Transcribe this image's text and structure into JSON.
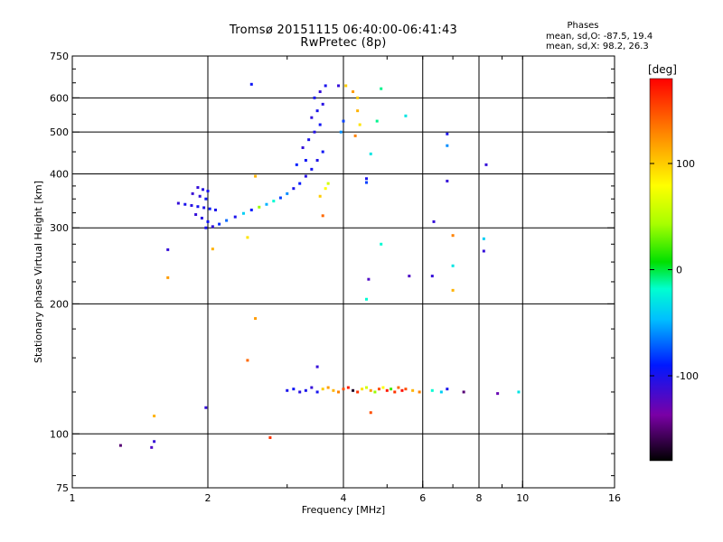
{
  "title": {
    "line1": "Tromsø 20151115 06:40:00-06:41:43",
    "line2": "RwPretec (8p)"
  },
  "stats": {
    "heading": "Phases",
    "line1": "mean, sd,O: -87.5, 19.4",
    "line2": "mean, sd,X:  98.2, 26.3"
  },
  "colorbar": {
    "unit": "[deg]",
    "ticks": [
      {
        "value": 100,
        "label": "100"
      },
      {
        "value": 0,
        "label": "0"
      },
      {
        "value": -100,
        "label": "-100"
      }
    ],
    "range": [
      -180,
      180
    ]
  },
  "chart_data": {
    "type": "scatter",
    "title": "Tromsø 20151115 06:40:00-06:41:43",
    "subtitle": "RwPretec (8p)",
    "xlabel": "Frequency [MHz]",
    "ylabel": "Stationary phase Virtual Height [km]",
    "xscale": "log",
    "yscale": "log",
    "xlim": [
      1,
      16
    ],
    "ylim": [
      75,
      750
    ],
    "grid": true,
    "x_ticks": [
      {
        "value": 1,
        "label": "1"
      },
      {
        "value": 2,
        "label": "2"
      },
      {
        "value": 4,
        "label": "4"
      },
      {
        "value": 6,
        "label": "6"
      },
      {
        "value": 8,
        "label": "8"
      },
      {
        "value": 10,
        "label": "10"
      },
      {
        "value": 16,
        "label": "16"
      }
    ],
    "y_ticks": [
      {
        "value": 75,
        "label": "75"
      },
      {
        "value": 100,
        "label": "100"
      },
      {
        "value": 200,
        "label": "200"
      },
      {
        "value": 300,
        "label": "300"
      },
      {
        "value": 400,
        "label": "400"
      },
      {
        "value": 500,
        "label": "500"
      },
      {
        "value": 600,
        "label": "600"
      },
      {
        "value": 750,
        "label": "750"
      }
    ],
    "x_gridlines": [
      2,
      4,
      6,
      8,
      10
    ],
    "y_gridlines": [
      100,
      200,
      300,
      400,
      500,
      600
    ],
    "color_variable": "phase [deg]",
    "series": [
      {
        "values": [
          {
            "x": 1.9,
            "y": 372,
            "phase": -110
          },
          {
            "x": 1.95,
            "y": 368,
            "phase": -105
          },
          {
            "x": 2.0,
            "y": 365,
            "phase": -100
          },
          {
            "x": 1.85,
            "y": 360,
            "phase": -112
          },
          {
            "x": 1.92,
            "y": 355,
            "phase": -108
          },
          {
            "x": 1.98,
            "y": 350,
            "phase": -95
          },
          {
            "x": 1.72,
            "y": 342,
            "phase": -110
          },
          {
            "x": 1.78,
            "y": 340,
            "phase": -100
          },
          {
            "x": 1.84,
            "y": 338,
            "phase": -105
          },
          {
            "x": 1.9,
            "y": 336,
            "phase": -98
          },
          {
            "x": 1.96,
            "y": 334,
            "phase": -102
          },
          {
            "x": 2.02,
            "y": 332,
            "phase": -92
          },
          {
            "x": 2.08,
            "y": 330,
            "phase": -100
          },
          {
            "x": 1.88,
            "y": 322,
            "phase": -110
          },
          {
            "x": 1.94,
            "y": 316,
            "phase": -104
          },
          {
            "x": 2.0,
            "y": 310,
            "phase": -95
          },
          {
            "x": 1.98,
            "y": 300,
            "phase": -100
          },
          {
            "x": 2.05,
            "y": 302,
            "phase": -108
          },
          {
            "x": 2.12,
            "y": 306,
            "phase": -85
          },
          {
            "x": 2.2,
            "y": 312,
            "phase": -70
          },
          {
            "x": 2.3,
            "y": 318,
            "phase": -100
          },
          {
            "x": 2.4,
            "y": 324,
            "phase": -40
          },
          {
            "x": 2.5,
            "y": 330,
            "phase": -90
          },
          {
            "x": 2.6,
            "y": 335,
            "phase": 40
          },
          {
            "x": 2.7,
            "y": 340,
            "phase": -50
          },
          {
            "x": 2.8,
            "y": 346,
            "phase": -20
          },
          {
            "x": 2.9,
            "y": 352,
            "phase": -80
          },
          {
            "x": 3.0,
            "y": 360,
            "phase": -60
          },
          {
            "x": 3.1,
            "y": 370,
            "phase": -100
          },
          {
            "x": 3.2,
            "y": 380,
            "phase": -90
          },
          {
            "x": 3.3,
            "y": 395,
            "phase": -105
          },
          {
            "x": 3.4,
            "y": 410,
            "phase": -98
          },
          {
            "x": 3.5,
            "y": 430,
            "phase": -102
          },
          {
            "x": 3.6,
            "y": 450,
            "phase": -95
          },
          {
            "x": 3.25,
            "y": 460,
            "phase": -110
          },
          {
            "x": 3.35,
            "y": 480,
            "phase": -100
          },
          {
            "x": 3.45,
            "y": 500,
            "phase": -104
          },
          {
            "x": 3.55,
            "y": 520,
            "phase": -96
          },
          {
            "x": 3.4,
            "y": 540,
            "phase": -108
          },
          {
            "x": 3.5,
            "y": 560,
            "phase": -100
          },
          {
            "x": 3.6,
            "y": 580,
            "phase": -105
          },
          {
            "x": 3.45,
            "y": 600,
            "phase": -98
          },
          {
            "x": 3.55,
            "y": 620,
            "phase": -110
          },
          {
            "x": 3.65,
            "y": 640,
            "phase": -100
          },
          {
            "x": 3.3,
            "y": 430,
            "phase": -95
          },
          {
            "x": 3.15,
            "y": 420,
            "phase": -88
          },
          {
            "x": 3.7,
            "y": 380,
            "phase": 60
          },
          {
            "x": 3.65,
            "y": 370,
            "phase": 80
          },
          {
            "x": 3.55,
            "y": 355,
            "phase": 100
          },
          {
            "x": 3.6,
            "y": 320,
            "phase": 140
          },
          {
            "x": 2.55,
            "y": 395,
            "phase": 110
          },
          {
            "x": 2.45,
            "y": 285,
            "phase": 90
          },
          {
            "x": 2.05,
            "y": 268,
            "phase": 110
          },
          {
            "x": 1.63,
            "y": 267,
            "phase": -110
          },
          {
            "x": 1.63,
            "y": 230,
            "phase": 120
          },
          {
            "x": 2.5,
            "y": 645,
            "phase": -95
          },
          {
            "x": 3.9,
            "y": 640,
            "phase": -110
          },
          {
            "x": 4.2,
            "y": 620,
            "phase": 120
          },
          {
            "x": 4.3,
            "y": 600,
            "phase": 100
          },
          {
            "x": 4.3,
            "y": 560,
            "phase": 110
          },
          {
            "x": 4.35,
            "y": 520,
            "phase": 90
          },
          {
            "x": 4.25,
            "y": 490,
            "phase": 130
          },
          {
            "x": 4.0,
            "y": 530,
            "phase": -80
          },
          {
            "x": 3.95,
            "y": 500,
            "phase": -60
          },
          {
            "x": 4.05,
            "y": 640,
            "phase": 100
          },
          {
            "x": 4.75,
            "y": 530,
            "phase": -10
          },
          {
            "x": 4.85,
            "y": 630,
            "phase": -10
          },
          {
            "x": 4.6,
            "y": 445,
            "phase": -30
          },
          {
            "x": 4.5,
            "y": 390,
            "phase": -100
          },
          {
            "x": 4.5,
            "y": 382,
            "phase": -80
          },
          {
            "x": 4.85,
            "y": 275,
            "phase": -20
          },
          {
            "x": 4.55,
            "y": 228,
            "phase": -120
          },
          {
            "x": 4.5,
            "y": 205,
            "phase": -20
          },
          {
            "x": 5.5,
            "y": 545,
            "phase": -30
          },
          {
            "x": 5.6,
            "y": 232,
            "phase": -120
          },
          {
            "x": 6.35,
            "y": 310,
            "phase": -110
          },
          {
            "x": 6.3,
            "y": 232,
            "phase": -110
          },
          {
            "x": 6.8,
            "y": 495,
            "phase": -100
          },
          {
            "x": 6.8,
            "y": 465,
            "phase": -60
          },
          {
            "x": 6.8,
            "y": 385,
            "phase": -110
          },
          {
            "x": 7.0,
            "y": 288,
            "phase": 130
          },
          {
            "x": 7.0,
            "y": 245,
            "phase": -30
          },
          {
            "x": 7.0,
            "y": 215,
            "phase": 110
          },
          {
            "x": 8.3,
            "y": 420,
            "phase": -110
          },
          {
            "x": 8.2,
            "y": 283,
            "phase": -40
          },
          {
            "x": 8.2,
            "y": 265,
            "phase": -110
          },
          {
            "x": 2.55,
            "y": 185,
            "phase": 120
          },
          {
            "x": 2.45,
            "y": 148,
            "phase": 140
          },
          {
            "x": 3.5,
            "y": 143,
            "phase": -110
          },
          {
            "x": 3.0,
            "y": 126,
            "phase": -100
          },
          {
            "x": 3.1,
            "y": 127,
            "phase": -95
          },
          {
            "x": 3.2,
            "y": 125,
            "phase": -105
          },
          {
            "x": 3.3,
            "y": 126,
            "phase": -100
          },
          {
            "x": 3.4,
            "y": 128,
            "phase": -110
          },
          {
            "x": 3.5,
            "y": 125,
            "phase": -98
          },
          {
            "x": 3.6,
            "y": 127,
            "phase": 100
          },
          {
            "x": 3.7,
            "y": 128,
            "phase": 120
          },
          {
            "x": 3.8,
            "y": 126,
            "phase": 110
          },
          {
            "x": 3.9,
            "y": 125,
            "phase": 130
          },
          {
            "x": 4.0,
            "y": 127,
            "phase": 150
          },
          {
            "x": 4.1,
            "y": 128,
            "phase": 170
          },
          {
            "x": 4.2,
            "y": 126,
            "phase": -170
          },
          {
            "x": 4.3,
            "y": 125,
            "phase": 160
          },
          {
            "x": 4.4,
            "y": 127,
            "phase": 90
          },
          {
            "x": 4.5,
            "y": 128,
            "phase": 60
          },
          {
            "x": 4.6,
            "y": 126,
            "phase": 120
          },
          {
            "x": 4.7,
            "y": 125,
            "phase": 40
          },
          {
            "x": 4.8,
            "y": 127,
            "phase": 150
          },
          {
            "x": 4.9,
            "y": 128,
            "phase": 80
          },
          {
            "x": 5.0,
            "y": 126,
            "phase": 170
          },
          {
            "x": 5.1,
            "y": 127,
            "phase": 20
          },
          {
            "x": 5.2,
            "y": 125,
            "phase": 160
          },
          {
            "x": 5.3,
            "y": 128,
            "phase": 140
          },
          {
            "x": 5.4,
            "y": 126,
            "phase": 175
          },
          {
            "x": 5.5,
            "y": 127,
            "phase": 150
          },
          {
            "x": 5.7,
            "y": 126,
            "phase": 110
          },
          {
            "x": 5.9,
            "y": 125,
            "phase": 130
          },
          {
            "x": 6.3,
            "y": 126,
            "phase": -20
          },
          {
            "x": 6.6,
            "y": 125,
            "phase": -40
          },
          {
            "x": 6.8,
            "y": 127,
            "phase": -100
          },
          {
            "x": 7.4,
            "y": 125,
            "phase": -150
          },
          {
            "x": 8.8,
            "y": 124,
            "phase": -130
          },
          {
            "x": 9.8,
            "y": 125,
            "phase": -30
          },
          {
            "x": 4.6,
            "y": 112,
            "phase": 150
          },
          {
            "x": 1.52,
            "y": 110,
            "phase": 110
          },
          {
            "x": 1.98,
            "y": 115,
            "phase": -110
          },
          {
            "x": 1.52,
            "y": 96,
            "phase": -110
          },
          {
            "x": 1.5,
            "y": 93,
            "phase": -120
          },
          {
            "x": 1.28,
            "y": 94,
            "phase": -150
          },
          {
            "x": 2.75,
            "y": 98,
            "phase": 160
          }
        ]
      }
    ]
  }
}
